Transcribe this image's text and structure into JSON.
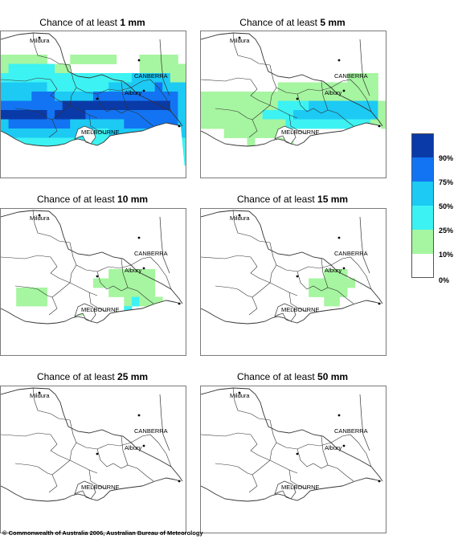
{
  "title_prefix": "Chance of at least",
  "palette": {
    "1": "#a6f5a0",
    "2": "#3df2f2",
    "3": "#1ccaf4",
    "4": "#1274f2",
    "5": "#0a3aa8"
  },
  "panels": [
    {
      "amount": "1 mm",
      "grid": [
        "........................",
        ".............0000000000.",
        "111111...11111100.11111.",
        "122222211.........111111",
        "222222222222222223333311",
        "333333222222223333334333",
        "333344433333444444444443",
        "444444445555555555555543",
        "555555455554444444444443",
        "344444444333333344444443",
        "333333333333223333333333",
        "222222222222222222222222",
        "222222222222222222222222",
        "222222222222222222222222",
        "........................"
      ],
      "labels": [
        "Mildura",
        "CANBERRA",
        "Albury",
        "MELBOURNE"
      ]
    },
    {
      "amount": "5 mm",
      "grid": [
        "........................",
        "........................",
        "........................",
        "........................",
        "...................1111.",
        "..........1111111111111.",
        "11111111111111111111111.",
        "111111111122223333333331",
        "111111112222333333333331",
        "111111111112222222222211",
        "...1111111.........111..",
        "......1...11.......11...",
        ".........1.............",
        "........................",
        "........................"
      ],
      "labels": [
        "Mildura",
        "CANBERRA",
        "Albury",
        "MELBOURNE"
      ]
    },
    {
      "amount": "10 mm",
      "grid": [
        "........................",
        "........................",
        "........................",
        "........................",
        "........................",
        "........................",
        "..............111111....",
        "............11111111....",
        "..1111........111111....",
        "..1111..........12111...",
        "..........1.....2.......",
        "........................",
        "1...........1.1.........",
        "........................",
        "........................"
      ],
      "labels": [
        "Mildura",
        "CANBERRA",
        "Albury",
        "MELBOURNE"
      ]
    },
    {
      "amount": "15 mm",
      "grid": [
        "........................",
        "........................",
        "........................",
        "........................",
        "........................",
        "........................",
        "................111.....",
        "..............111111....",
        "..............11111.....",
        "................11......",
        "........................",
        "........................",
        ".........2..............",
        "........................",
        "........................"
      ],
      "labels": [
        "Mildura",
        "CANBERRA",
        "Albury",
        "MELBOURNE"
      ]
    },
    {
      "amount": "25 mm",
      "grid": [],
      "labels": [
        "Mildura",
        "CANBERRA",
        "Albury",
        "MELBOURNE"
      ]
    },
    {
      "amount": "50 mm",
      "grid": [],
      "labels": [
        "Mildura",
        "CANBERRA",
        "Albury",
        "MELBOURNE"
      ]
    }
  ],
  "legend": {
    "colors": [
      "#0a3aa8",
      "#1274f2",
      "#1ccaf4",
      "#3df2f2",
      "#a6f5a0",
      "#ffffff"
    ],
    "labels": [
      "90%",
      "75%",
      "50%",
      "25%",
      "10%",
      "0%"
    ]
  },
  "copyright": "© Commonwealth of Australia 2006, Australian Bureau of Meteorology"
}
